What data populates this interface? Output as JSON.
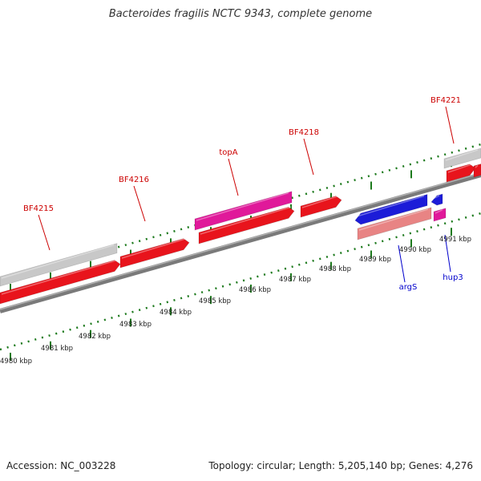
{
  "title": "Bacteroides fragilis NCTC 9343, complete genome",
  "footer": {
    "accession": "Accession: NC_003228",
    "summary": "Topology: circular; Length: 5,205,140 bp; Genes: 4,276"
  },
  "colors": {
    "forward_gene": "#e8141c",
    "reverse_gene": "#1c1cd8",
    "pink_gene": "#e0199a",
    "gray_gene": "#c8c8c8",
    "light_red_gene": "#e88484",
    "tick_green": "#1d7a1d",
    "backbone": "#7a7a7a",
    "label_red": "#cc0000",
    "label_blue": "#0000cc"
  },
  "scale": {
    "unit": "kbp",
    "ticks": [
      {
        "value": 4980,
        "label": "4980 kbp"
      },
      {
        "value": 4981,
        "label": "4981 kbp"
      },
      {
        "value": 4982,
        "label": "4982 kbp"
      },
      {
        "value": 4983,
        "label": "4983 kbp"
      },
      {
        "value": 4984,
        "label": "4984 kbp"
      },
      {
        "value": 4985,
        "label": "4985 kbp"
      },
      {
        "value": 4986,
        "label": "4986 kbp"
      },
      {
        "value": 4987,
        "label": "4987 kbp"
      },
      {
        "value": 4988,
        "label": "4988 kbp"
      },
      {
        "value": 4989,
        "label": "4989 kbp"
      },
      {
        "value": 4990,
        "label": "4990 kbp"
      },
      {
        "value": 4991,
        "label": "4991 kbp"
      }
    ]
  },
  "gene_labels": [
    {
      "name": "BF4215",
      "strand": "forward"
    },
    {
      "name": "BF4216",
      "strand": "forward"
    },
    {
      "name": "topA",
      "strand": "forward"
    },
    {
      "name": "BF4218",
      "strand": "forward"
    },
    {
      "name": "BF4221",
      "strand": "forward"
    },
    {
      "name": "argS",
      "strand": "reverse"
    },
    {
      "name": "hup3",
      "strand": "reverse"
    }
  ]
}
